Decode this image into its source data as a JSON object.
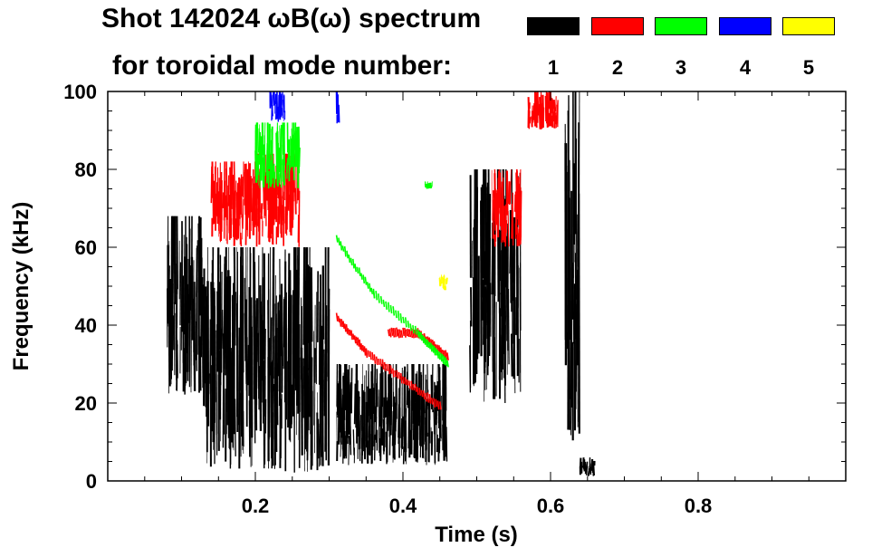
{
  "title": {
    "line1": "Shot 142024 ωB(ω) spectrum",
    "line2": "for toroidal mode number:"
  },
  "legend": [
    {
      "label": "1",
      "color": "#000000"
    },
    {
      "label": "2",
      "color": "#ff0000"
    },
    {
      "label": "3",
      "color": "#00ff00"
    },
    {
      "label": "4",
      "color": "#0000ff"
    },
    {
      "label": "5",
      "color": "#ffff00"
    }
  ],
  "chart_data": {
    "type": "heatmap",
    "xlabel": "Time (s)",
    "ylabel": "Frequency (kHz)",
    "xlim": [
      0.0,
      1.0
    ],
    "ylim": [
      0,
      100
    ],
    "xticks": [
      0.2,
      0.4,
      0.6,
      0.8
    ],
    "yticks": [
      0,
      20,
      40,
      60,
      80,
      100
    ],
    "xtick_labels": [
      "0.2",
      "0.4",
      "0.6",
      "0.8"
    ],
    "ytick_labels": [
      "0",
      "20",
      "40",
      "60",
      "80",
      "100"
    ],
    "grid": false,
    "series": [
      {
        "name": "1",
        "color": "#000000",
        "regions": [
          {
            "t0": 0.08,
            "t1": 0.13,
            "f0": 22,
            "f1": 68
          },
          {
            "t0": 0.13,
            "t1": 0.3,
            "f0": 2,
            "f1": 60
          },
          {
            "t0": 0.31,
            "t1": 0.46,
            "f0": 4,
            "f1": 30
          },
          {
            "t0": 0.49,
            "t1": 0.56,
            "f0": 20,
            "f1": 80
          },
          {
            "t0": 0.62,
            "t1": 0.64,
            "f0": 10,
            "f1": 100
          },
          {
            "t0": 0.64,
            "t1": 0.66,
            "f0": 1,
            "f1": 6
          }
        ]
      },
      {
        "name": "2",
        "color": "#ff0000",
        "regions": [
          {
            "t0": 0.14,
            "t1": 0.2,
            "f0": 60,
            "f1": 82
          },
          {
            "t0": 0.2,
            "t1": 0.26,
            "f0": 60,
            "f1": 84
          },
          {
            "t0": 0.52,
            "t1": 0.56,
            "f0": 60,
            "f1": 80
          },
          {
            "t0": 0.57,
            "t1": 0.61,
            "f0": 90,
            "f1": 100
          }
        ],
        "lines": [
          {
            "t": [
              0.31,
              0.35,
              0.4,
              0.45
            ],
            "f": [
              42,
              33,
              26,
              19
            ]
          },
          {
            "t": [
              0.38,
              0.42,
              0.46
            ],
            "f": [
              38,
              38,
              32
            ]
          }
        ]
      },
      {
        "name": "3",
        "color": "#00ff00",
        "regions": [
          {
            "t0": 0.2,
            "t1": 0.26,
            "f0": 75,
            "f1": 92
          },
          {
            "t0": 0.43,
            "t1": 0.44,
            "f0": 75,
            "f1": 77
          }
        ],
        "lines": [
          {
            "t": [
              0.31,
              0.36,
              0.42,
              0.46
            ],
            "f": [
              62,
              48,
              38,
              30
            ]
          }
        ]
      },
      {
        "name": "4",
        "color": "#0000ff",
        "regions": [
          {
            "t0": 0.22,
            "t1": 0.24,
            "f0": 92,
            "f1": 100
          },
          {
            "t0": 0.31,
            "t1": 0.315,
            "f0": 90,
            "f1": 100
          }
        ]
      },
      {
        "name": "5",
        "color": "#ffff00",
        "regions": [
          {
            "t0": 0.45,
            "t1": 0.46,
            "f0": 49,
            "f1": 53
          }
        ]
      }
    ]
  }
}
